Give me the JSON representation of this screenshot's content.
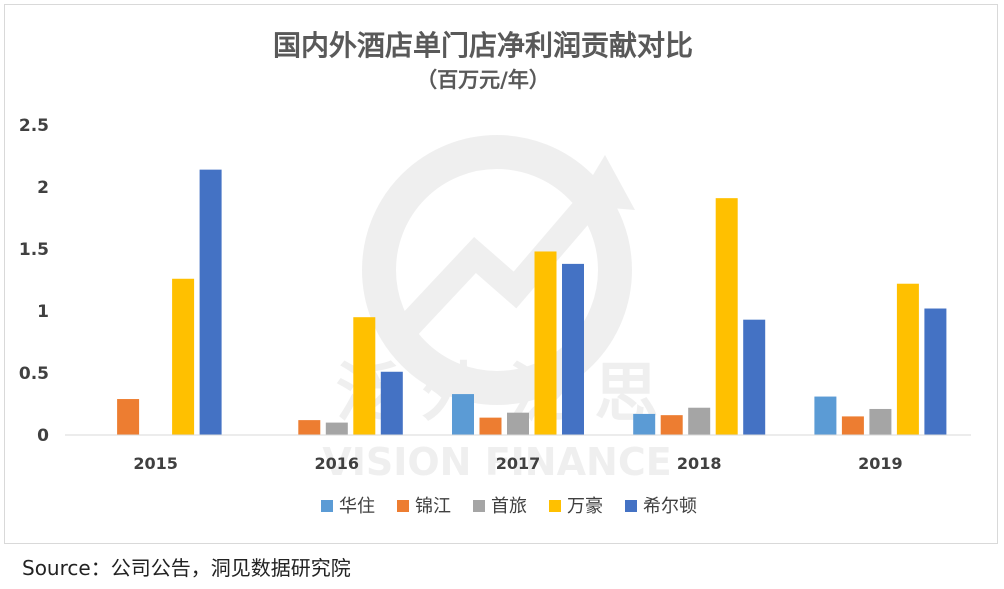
{
  "chart_data": {
    "type": "bar",
    "title": "国内外酒店单门店净利润贡献对比",
    "subtitle": "（百万元/年）",
    "categories": [
      "2015",
      "2016",
      "2017",
      "2018",
      "2019"
    ],
    "series": [
      {
        "name": "华住",
        "color": "#5b9bd5",
        "values": [
          null,
          null,
          0.33,
          0.17,
          0.31
        ]
      },
      {
        "name": "锦江",
        "color": "#ed7d31",
        "values": [
          0.29,
          0.12,
          0.14,
          0.16,
          0.15
        ]
      },
      {
        "name": "首旅",
        "color": "#a5a5a5",
        "values": [
          null,
          0.1,
          0.18,
          0.22,
          0.21
        ]
      },
      {
        "name": "万豪",
        "color": "#ffc000",
        "values": [
          1.26,
          0.95,
          1.48,
          1.91,
          1.22
        ]
      },
      {
        "name": "希尔顿",
        "color": "#4472c4",
        "values": [
          2.14,
          0.51,
          1.38,
          0.93,
          1.02
        ]
      }
    ],
    "yticks": [
      "0",
      "0.5",
      "1",
      "1.5",
      "2",
      "2.5"
    ],
    "ylim": [
      0,
      2.5
    ],
    "grid": false,
    "legend_position": "bottom"
  },
  "watermark": {
    "text": "泛 外 泛 思",
    "subtext": "VISION FINANCE"
  },
  "source": "Source：公司公告，洞见数据研究院"
}
